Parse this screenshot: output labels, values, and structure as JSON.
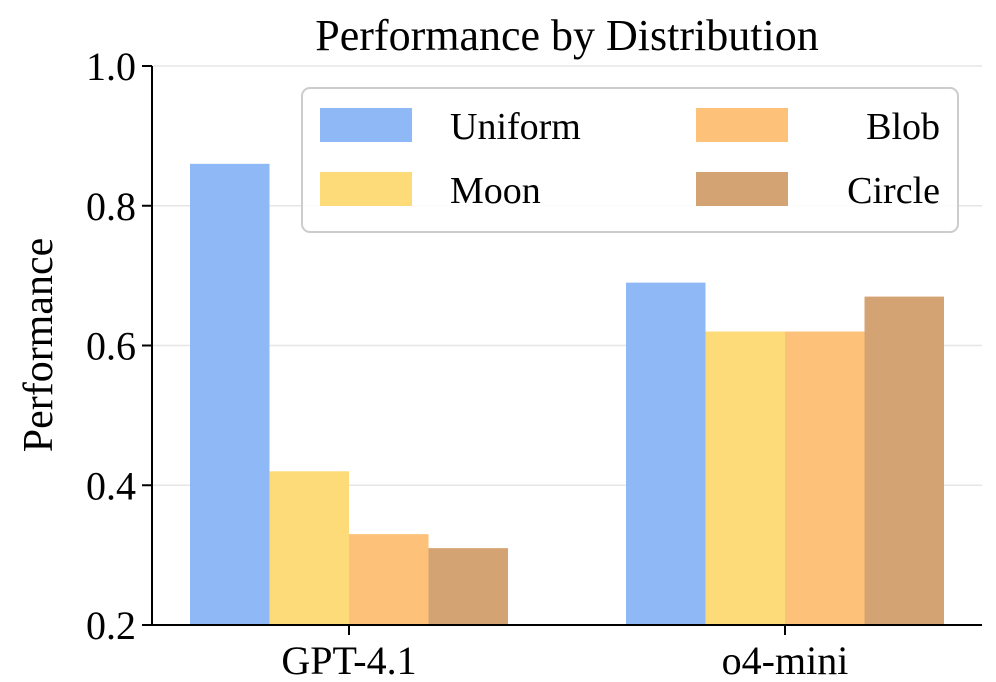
{
  "chart_data": {
    "type": "bar",
    "title": "Performance by Distribution",
    "xlabel": "",
    "ylabel": "Performance",
    "ylim": [
      0.2,
      1.0
    ],
    "yticks": [
      0.2,
      0.4,
      0.6,
      0.8,
      1.0
    ],
    "ytick_labels": [
      "0.2",
      "0.4",
      "0.6",
      "0.8",
      "1.0"
    ],
    "grid": true,
    "legend_position": "top-right",
    "categories": [
      "GPT-4.1",
      "o4-mini"
    ],
    "series": [
      {
        "name": "Uniform",
        "color": "#8fb8f7",
        "values": [
          0.86,
          0.69
        ]
      },
      {
        "name": "Moon",
        "color": "#fedb79",
        "values": [
          0.42,
          0.62
        ]
      },
      {
        "name": "Blob",
        "color": "#fec179",
        "values": [
          0.33,
          0.62
        ]
      },
      {
        "name": "Circle",
        "color": "#d4a373",
        "values": [
          0.31,
          0.67
        ]
      }
    ]
  }
}
